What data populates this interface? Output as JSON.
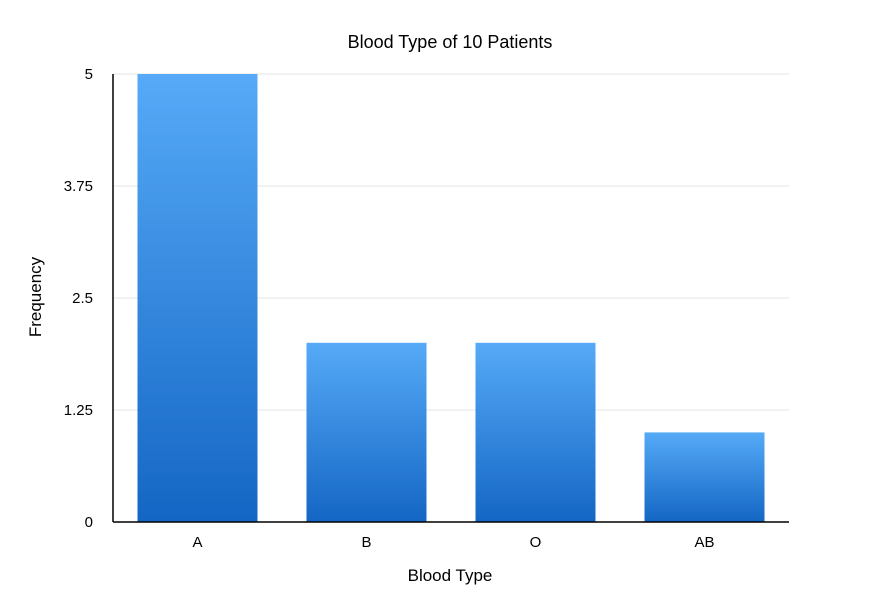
{
  "chart_data": {
    "type": "bar",
    "title": "Blood Type of 10 Patients",
    "xlabel": "Blood Type",
    "ylabel": "Frequency",
    "categories": [
      "A",
      "B",
      "O",
      "AB"
    ],
    "values": [
      5,
      2,
      2,
      1
    ],
    "ylim": [
      0,
      5
    ],
    "yticks": [
      "0",
      "1.25",
      "2.5",
      "3.75",
      "5"
    ],
    "grid": true,
    "legend": "none",
    "colors": {
      "bar_top": "#56aaf7",
      "bar_bottom": "#1466c4"
    }
  }
}
